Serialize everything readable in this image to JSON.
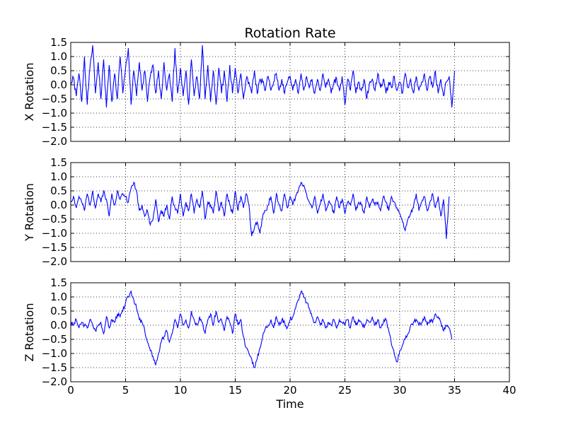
{
  "chart_data": {
    "type": "line",
    "title": "Rotation Rate",
    "xlabel": "Time",
    "xlim": [
      0,
      40
    ],
    "x_ticks": [
      "0",
      "5",
      "10",
      "15",
      "20",
      "25",
      "30",
      "35",
      "40"
    ],
    "grid": true,
    "line_color": "#0000ff",
    "x_sample": [
      0,
      0.25,
      0.5,
      0.75,
      1,
      1.25,
      1.5,
      1.75,
      2,
      2.25,
      2.5,
      2.75,
      3,
      3.25,
      3.5,
      3.75,
      4,
      4.25,
      4.5,
      4.75,
      5,
      5.25,
      5.5,
      5.75,
      6,
      6.25,
      6.5,
      6.75,
      7,
      7.25,
      7.5,
      7.75,
      8,
      8.25,
      8.5,
      8.75,
      9,
      9.25,
      9.5,
      9.75,
      10,
      10.25,
      10.5,
      10.75,
      11,
      11.25,
      11.5,
      11.75,
      12,
      12.25,
      12.5,
      12.75,
      13,
      13.25,
      13.5,
      13.75,
      14,
      14.25,
      14.5,
      14.75,
      15,
      15.25,
      15.5,
      15.75,
      16,
      16.25,
      16.5,
      16.75,
      17,
      17.25,
      17.5,
      17.75,
      18,
      18.25,
      18.5,
      18.75,
      19,
      19.25,
      19.5,
      19.75,
      20,
      20.25,
      20.5,
      20.75,
      21,
      21.25,
      21.5,
      21.75,
      22,
      22.25,
      22.5,
      22.75,
      23,
      23.25,
      23.5,
      23.75,
      24,
      24.25,
      24.5,
      24.75,
      25,
      25.25,
      25.5,
      25.75,
      26,
      26.25,
      26.5,
      26.75,
      27,
      27.25,
      27.5,
      27.75,
      28,
      28.25,
      28.5,
      28.75,
      29,
      29.25,
      29.5,
      29.75,
      30,
      30.25,
      30.5,
      30.75,
      31,
      31.25,
      31.5,
      31.75,
      32,
      32.25,
      32.5,
      32.75,
      33,
      33.25,
      33.5,
      33.75,
      34,
      34.25,
      34.5,
      34.75,
      35,
      35.25,
      35.5
    ],
    "panels": [
      {
        "ylabel": "X Rotation",
        "ylim": [
          -2.0,
          1.5
        ],
        "y_ticks": [
          "1.5",
          "1.0",
          "0.5",
          "0.0",
          "−0.5",
          "−1.0",
          "−1.5",
          "−2.0"
        ],
        "values": [
          0.0,
          0.25,
          -0.4,
          0.4,
          -0.6,
          1.0,
          -0.7,
          0.6,
          1.4,
          -0.3,
          0.8,
          -0.5,
          0.9,
          -0.8,
          0.7,
          -0.6,
          0.4,
          -0.5,
          1.0,
          -0.3,
          0.6,
          1.3,
          -0.7,
          0.5,
          -0.4,
          0.8,
          -0.2,
          0.5,
          -0.6,
          0.3,
          0.7,
          -0.3,
          0.5,
          -0.5,
          0.8,
          -0.2,
          0.4,
          -0.6,
          1.3,
          -0.3,
          0.6,
          -0.4,
          0.5,
          -0.7,
          0.9,
          -0.4,
          0.3,
          -0.5,
          1.4,
          -0.5,
          0.7,
          -0.6,
          0.5,
          -0.7,
          0.6,
          -0.3,
          0.5,
          -0.6,
          0.7,
          -0.3,
          0.6,
          -0.3,
          0.4,
          -0.5,
          0.2,
          0.1,
          -0.3,
          0.5,
          -0.3,
          0.2,
          0.1,
          -0.2,
          0.3,
          -0.2,
          0.1,
          0.4,
          -0.2,
          0.2,
          -0.3,
          0.1,
          0.3,
          -0.2,
          0.2,
          -0.3,
          0.4,
          -0.2,
          0.3,
          -0.1,
          0.2,
          -0.3,
          0.2,
          -0.2,
          0.4,
          -0.1,
          0.2,
          -0.3,
          0.1,
          0.2,
          -0.2,
          0.3,
          -0.7,
          0.2,
          -0.2,
          0.5,
          -0.3,
          0.1,
          -0.2,
          0.2,
          -0.5,
          0.1,
          0.2,
          -0.2,
          0.4,
          -0.1,
          0.2,
          -0.3,
          0.1,
          -0.1,
          0.3,
          -0.2,
          0.1,
          -0.3,
          0.4,
          -0.1,
          0.2,
          -0.3,
          0.3,
          -0.2,
          0.1,
          0.4,
          -0.2,
          0.3,
          -0.1,
          0.5,
          -0.3,
          0.2,
          -0.4,
          0.1,
          0.3,
          -0.8,
          0.5
        ]
      },
      {
        "ylabel": "Y Rotation",
        "ylim": [
          -2.0,
          1.5
        ],
        "y_ticks": [
          "1.5",
          "1.0",
          "0.5",
          "0.0",
          "−0.5",
          "−1.0",
          "−1.5",
          "−2.0"
        ],
        "values": [
          0.1,
          0.3,
          -0.1,
          0.3,
          0.1,
          -0.2,
          0.4,
          0.0,
          0.5,
          -0.1,
          0.4,
          0.1,
          0.5,
          0.2,
          -0.4,
          0.4,
          0.0,
          0.5,
          0.2,
          0.4,
          0.3,
          0.1,
          0.6,
          0.8,
          0.5,
          -0.2,
          0.0,
          -0.4,
          -0.2,
          -0.7,
          -0.5,
          0.2,
          -0.6,
          -0.2,
          -0.4,
          0.0,
          -0.5,
          0.3,
          -0.1,
          -0.3,
          0.4,
          -0.4,
          0.1,
          -0.2,
          0.4,
          -0.3,
          0.2,
          -0.1,
          0.5,
          -0.5,
          0.1,
          0.0,
          -0.3,
          0.5,
          -0.2,
          0.1,
          -0.4,
          0.4,
          0.0,
          -0.3,
          0.5,
          -0.2,
          0.3,
          -0.1,
          0.4,
          0.0,
          -1.1,
          -0.8,
          -0.6,
          -1.0,
          -0.4,
          -0.2,
          0.0,
          0.3,
          -0.3,
          0.4,
          0.0,
          -0.2,
          0.4,
          -0.1,
          0.3,
          0.0,
          0.3,
          0.5,
          0.8,
          0.7,
          0.4,
          0.1,
          -0.1,
          0.3,
          -0.3,
          0.0,
          0.4,
          -0.2,
          0.1,
          0.0,
          -0.3,
          0.3,
          -0.1,
          0.2,
          -0.3,
          0.1,
          0.0,
          0.4,
          -0.2,
          0.1,
          0.0,
          -0.3,
          0.3,
          -0.1,
          0.2,
          0.0,
          0.1,
          -0.2,
          0.3,
          0.1,
          -0.2,
          0.3,
          0.1,
          -0.1,
          -0.3,
          -0.6,
          -0.9,
          -0.5,
          -0.3,
          -0.1,
          0.4,
          -0.2,
          0.1,
          0.3,
          -0.2,
          0.1,
          0.4,
          -0.1,
          0.3,
          -0.4,
          0.2,
          -1.2,
          0.3
        ]
      },
      {
        "ylabel": "Z Rotation",
        "ylim": [
          -2.0,
          1.5
        ],
        "y_ticks": [
          "1.5",
          "1.0",
          "0.5",
          "0.0",
          "−0.5",
          "−1.0",
          "−1.5",
          "−2.0"
        ],
        "values": [
          0.1,
          0.0,
          0.2,
          -0.1,
          0.1,
          0.0,
          -0.1,
          0.2,
          0.0,
          -0.2,
          0.0,
          0.1,
          -0.3,
          0.3,
          -0.1,
          0.2,
          0.1,
          0.4,
          0.3,
          0.5,
          0.8,
          1.0,
          1.2,
          0.9,
          0.6,
          0.2,
          0.1,
          -0.2,
          -0.6,
          -0.9,
          -1.1,
          -1.4,
          -1.0,
          -0.6,
          -0.4,
          -0.2,
          -0.6,
          -0.3,
          0.2,
          -0.1,
          0.4,
          0.0,
          0.2,
          -0.1,
          0.5,
          0.2,
          0.0,
          0.3,
          0.1,
          -0.3,
          0.2,
          0.4,
          0.0,
          0.5,
          0.1,
          0.2,
          -0.2,
          0.3,
          0.1,
          -0.3,
          0.4,
          0.0,
          0.2,
          -0.4,
          -0.8,
          -1.0,
          -1.2,
          -1.5,
          -1.2,
          -0.8,
          -0.4,
          -0.1,
          0.0,
          0.2,
          -0.1,
          0.3,
          0.0,
          0.2,
          0.1,
          -0.1,
          0.2,
          0.3,
          0.6,
          0.9,
          1.2,
          1.0,
          0.8,
          0.6,
          0.3,
          0.1,
          0.3,
          0.0,
          0.2,
          -0.1,
          0.1,
          0.0,
          0.2,
          -0.1,
          0.2,
          0.1,
          0.0,
          0.2,
          -0.1,
          0.3,
          0.0,
          0.2,
          0.1,
          -0.1,
          0.2,
          0.1,
          0.3,
          0.0,
          0.2,
          -0.1,
          0.1,
          0.2,
          -0.2,
          -0.7,
          -1.0,
          -1.3,
          -0.9,
          -0.7,
          -0.5,
          -0.3,
          0.0,
          0.1,
          0.2,
          0.0,
          0.1,
          0.3,
          0.0,
          0.2,
          0.1,
          0.4,
          0.3,
          0.1,
          -0.2,
          0.0,
          -0.1,
          -0.5
        ]
      }
    ]
  }
}
